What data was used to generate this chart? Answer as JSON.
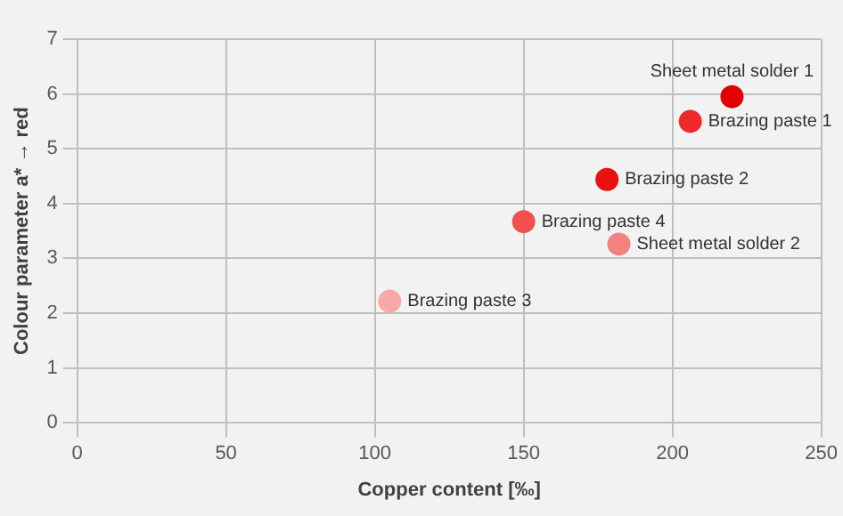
{
  "chart_data": {
    "type": "scatter",
    "xlabel": "Copper content [‰]",
    "ylabel": "Colour parameter a* → red",
    "xlim": [
      0,
      250
    ],
    "xticks": [
      0,
      50,
      100,
      150,
      200,
      250
    ],
    "ylim": [
      0,
      7
    ],
    "yticks": [
      0,
      1,
      2,
      3,
      4,
      5,
      6,
      7
    ],
    "grid": true,
    "legend": false,
    "marker": "circle",
    "series": [
      {
        "name": "Sheet metal solder 1",
        "color": "#e00000",
        "x": [
          220
        ],
        "values": [
          5.95
        ]
      },
      {
        "name": "Brazing paste 1",
        "color": "#f02828",
        "x": [
          206
        ],
        "values": [
          5.5
        ]
      },
      {
        "name": "Brazing paste 2",
        "color": "#e81010",
        "x": [
          178
        ],
        "values": [
          4.44
        ]
      },
      {
        "name": "Brazing paste 4",
        "color": "#f05050",
        "x": [
          150
        ],
        "values": [
          3.67
        ]
      },
      {
        "name": "Sheet metal solder 2",
        "color": "#f58080",
        "x": [
          182
        ],
        "values": [
          3.26
        ]
      },
      {
        "name": "Brazing paste 3",
        "color": "#f8a8a8",
        "x": [
          105
        ],
        "values": [
          2.22
        ]
      }
    ]
  }
}
